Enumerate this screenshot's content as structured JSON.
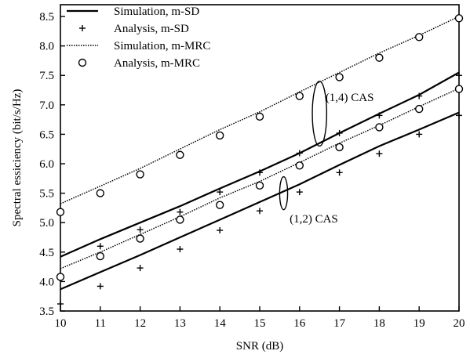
{
  "chart_data": {
    "type": "line",
    "xlabel": "SNR (dB)",
    "ylabel": "Spectral essiciency (bit/s/Hz)",
    "xlim": [
      10,
      20
    ],
    "ylim": [
      3.5,
      8.7
    ],
    "x_ticks": [
      10,
      11,
      12,
      13,
      14,
      15,
      16,
      17,
      18,
      19,
      20
    ],
    "y_ticks": [
      "3.5",
      "4.0",
      "4.5",
      "5.0",
      "5.5",
      "6.0",
      "6.5",
      "7.0",
      "7.5",
      "8.0",
      "8.5"
    ],
    "legend_position": "top-left",
    "grid": false,
    "series": [
      {
        "name": "Simulation, m-SD",
        "style": "solid",
        "color": "#000000",
        "groups": [
          {
            "x": [
              10,
              11,
              12,
              13,
              14,
              15,
              16,
              17,
              18,
              19,
              20
            ],
            "y": [
              4.42,
              4.72,
              5.0,
              5.28,
              5.58,
              5.87,
              6.18,
              6.52,
              6.85,
              7.17,
              7.55
            ]
          },
          {
            "x": [
              10,
              11,
              12,
              13,
              14,
              15,
              16,
              17,
              18,
              19,
              20
            ],
            "y": [
              3.87,
              4.16,
              4.45,
              4.75,
              5.05,
              5.35,
              5.65,
              5.98,
              6.3,
              6.58,
              6.87
            ]
          }
        ]
      },
      {
        "name": "Analysis, m-SD",
        "style": "plus",
        "color": "#000000",
        "groups": [
          {
            "x": [
              11,
              12,
              13,
              14,
              15,
              16,
              17,
              18,
              19,
              20
            ],
            "y": [
              4.6,
              4.88,
              5.18,
              5.52,
              5.85,
              6.18,
              6.52,
              6.82,
              7.15,
              7.5
            ]
          },
          {
            "x": [
              10,
              11,
              12,
              13,
              14,
              15,
              16,
              17,
              18,
              19,
              20
            ],
            "y": [
              3.62,
              3.92,
              4.23,
              4.55,
              4.87,
              5.2,
              5.52,
              5.85,
              6.17,
              6.5,
              6.82
            ]
          }
        ]
      },
      {
        "name": "Simulation, m-MRC",
        "style": "dotted",
        "color": "#000000",
        "groups": [
          {
            "x": [
              10,
              11,
              12,
              13,
              14,
              15,
              16,
              17,
              18,
              19,
              20
            ],
            "y": [
              5.32,
              5.62,
              5.92,
              6.25,
              6.58,
              6.88,
              7.22,
              7.55,
              7.88,
              8.18,
              8.5
            ]
          },
          {
            "x": [
              10,
              11,
              12,
              13,
              14,
              15,
              16,
              17,
              18,
              19,
              20
            ],
            "y": [
              4.22,
              4.5,
              4.8,
              5.1,
              5.42,
              5.7,
              6.02,
              6.35,
              6.65,
              6.97,
              7.28
            ]
          }
        ]
      },
      {
        "name": "Analysis, m-MRC",
        "style": "circle",
        "color": "#000000",
        "groups": [
          {
            "x": [
              10,
              11,
              12,
              13,
              14,
              15,
              16,
              17,
              18,
              19,
              20
            ],
            "y": [
              5.18,
              5.5,
              5.82,
              6.15,
              6.48,
              6.8,
              7.15,
              7.47,
              7.8,
              8.15,
              8.47
            ]
          },
          {
            "x": [
              10,
              11,
              12,
              13,
              14,
              15,
              16,
              17,
              18,
              19,
              20
            ],
            "y": [
              4.08,
              4.43,
              4.73,
              5.05,
              5.3,
              5.63,
              5.97,
              6.28,
              6.62,
              6.93,
              7.27
            ]
          }
        ]
      }
    ],
    "annotations": [
      {
        "text": "(1,4) CAS",
        "ellipse_center": [
          16.5,
          6.85
        ],
        "ellipse_radius_x": 0.18,
        "ellipse_radius_y": 0.55,
        "label_at": [
          16.65,
          7.13
        ]
      },
      {
        "text": "(1,2) CAS",
        "ellipse_center": [
          15.6,
          5.5
        ],
        "ellipse_radius_x": 0.1,
        "ellipse_radius_y": 0.28,
        "label_at": [
          15.75,
          5.07
        ]
      }
    ]
  }
}
